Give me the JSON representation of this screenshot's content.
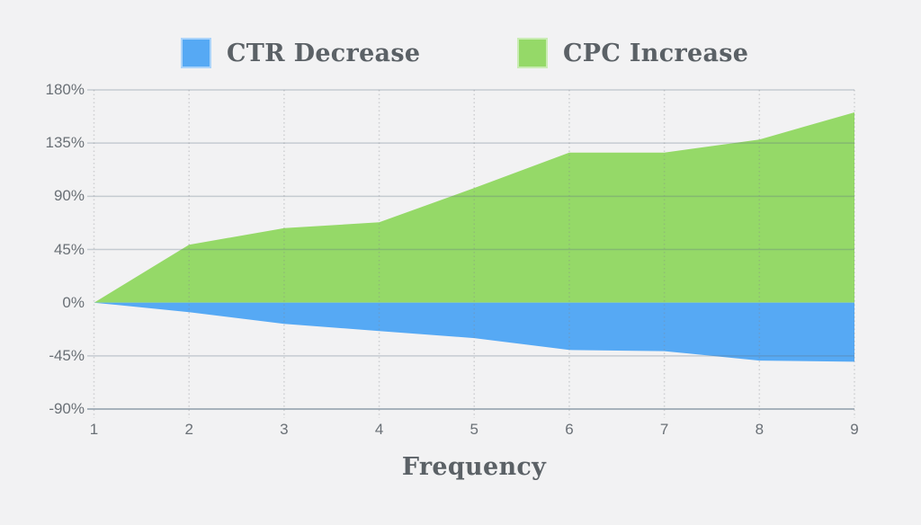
{
  "legend": {
    "items": [
      {
        "label": "CTR Decrease",
        "color": "#56a9f4"
      },
      {
        "label": "CPC Increase",
        "color": "#95d968"
      }
    ]
  },
  "chart_data": {
    "type": "area",
    "x": [
      1,
      2,
      3,
      4,
      5,
      6,
      7,
      8,
      9
    ],
    "xtick_labels": [
      "1",
      "2",
      "3",
      "4",
      "5",
      "6",
      "7",
      "8",
      "9"
    ],
    "series": [
      {
        "name": "CPC Increase",
        "color": "#95d968",
        "values": [
          0,
          49,
          63,
          68,
          97,
          127,
          127,
          138,
          161
        ]
      },
      {
        "name": "CTR Decrease",
        "color": "#56a9f4",
        "values": [
          0,
          -8,
          -18,
          -24,
          -30,
          -40,
          -41,
          -49,
          -50
        ]
      }
    ],
    "baseline": 0,
    "xlabel": "Frequency",
    "ylabel": "",
    "ylim": [
      -90,
      180
    ],
    "yticks": [
      180,
      135,
      90,
      45,
      0,
      -45,
      -90
    ],
    "ytick_labels": [
      "180%",
      "135%",
      "90%",
      "45%",
      "0%",
      "-45%",
      "-90%"
    ],
    "grid": {
      "horizontal": "solid",
      "vertical": "dotted"
    },
    "legend_position": "top",
    "background": "#f2f2f3"
  }
}
